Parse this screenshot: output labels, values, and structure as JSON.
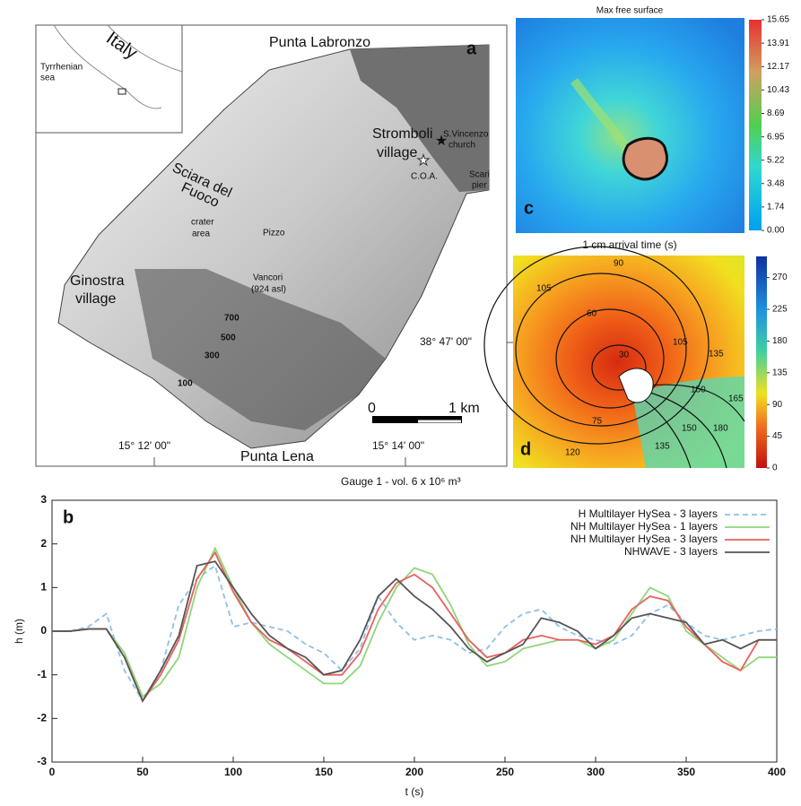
{
  "map": {
    "labels": [
      "Punta Labronzo",
      "a",
      "Italy",
      "Tyrrhenian",
      "sea",
      "Stromboli",
      "village",
      "S.Vincenzo",
      "church",
      "C.O.A.",
      "Scari",
      "pier",
      "Sciara del",
      "Fuoco",
      "crater",
      "area",
      "Pizzo",
      "Ginostra",
      "village",
      "Vancori",
      "(924 asl)",
      "700",
      "500",
      "300",
      "100",
      "0",
      "1 km",
      "38° 47' 00\"",
      "15° 12' 00\"",
      "15° 14' 00\"",
      "Punta Lena"
    ]
  },
  "panel_c": {
    "title": "Max free surface",
    "label": "c",
    "colorbar": {
      "lim": [
        0,
        15.65
      ],
      "ticks": [
        {
          "value": 0,
          "label": "0.00"
        },
        1.74,
        3.48,
        5.22,
        6.95,
        8.69,
        10.43,
        12.17,
        13.91,
        15.65
      ]
    }
  },
  "panel_d": {
    "title": "1 cm arrival time (s)",
    "label": "d",
    "colorbar": {
      "lim": [
        0,
        300
      ],
      "ticks": [
        0,
        45,
        90,
        135,
        180,
        225,
        270
      ]
    },
    "contour_labels": [
      105,
      90,
      60,
      30,
      75,
      105,
      135,
      150,
      120,
      135,
      150,
      165,
      180
    ]
  },
  "chart_data": {
    "type": "line",
    "label": "b",
    "title": "Gauge 1 - vol. 6 x 10⁶ m³",
    "x_label": "t (s)",
    "y_label": "h (m)",
    "x": [
      0,
      10,
      20,
      30,
      40,
      50,
      60,
      70,
      80,
      90,
      100,
      110,
      120,
      130,
      140,
      150,
      160,
      170,
      180,
      190,
      200,
      210,
      220,
      230,
      240,
      250,
      260,
      270,
      280,
      290,
      300,
      310,
      320,
      330,
      340,
      350,
      360,
      370,
      380,
      390,
      400
    ],
    "xlim": [
      0,
      400
    ],
    "xticks": [
      0,
      50,
      100,
      150,
      200,
      250,
      300,
      350,
      400
    ],
    "ylim": [
      -3,
      3
    ],
    "yticks": [
      -3,
      -2,
      -1,
      0,
      1,
      2,
      3
    ],
    "legend": "upper right",
    "series": [
      {
        "name": "H Multilayer HySea - 3 layers",
        "color": "#8fbfe6",
        "dashed": true,
        "values": [
          0,
          0,
          0.1,
          0.4,
          -0.9,
          -1.6,
          -0.9,
          0.6,
          1.2,
          1.5,
          0.1,
          0.2,
          0.1,
          0,
          -0.3,
          -0.5,
          -0.9,
          -0.4,
          0.8,
          0.2,
          -0.2,
          -0.1,
          -0.2,
          -0.5,
          -0.4,
          0.1,
          0.4,
          0.5,
          0.1,
          -0.1,
          -0.2,
          -0.3,
          -0.1,
          0.4,
          0.6,
          0.2,
          -0.1,
          -0.2,
          -0.1,
          0,
          0.05
        ]
      },
      {
        "name": "NH Multilayer HySea - 1 layers",
        "color": "#8fd67a",
        "values": [
          0,
          0,
          0.05,
          0.05,
          -0.5,
          -1.5,
          -1.2,
          -0.6,
          1.0,
          1.9,
          1.0,
          0.2,
          -0.3,
          -0.6,
          -0.9,
          -1.2,
          -1.2,
          -0.8,
          0.2,
          1.0,
          1.45,
          1.3,
          0.6,
          -0.3,
          -0.8,
          -0.7,
          -0.4,
          -0.3,
          -0.2,
          -0.2,
          -0.4,
          -0.2,
          0.4,
          1.0,
          0.8,
          0,
          -0.3,
          -0.6,
          -0.9,
          -0.6,
          -0.6
        ]
      },
      {
        "name": "NH Multilayer HySea - 3 layers",
        "color": "#e8605c",
        "values": [
          0,
          0,
          0.05,
          0.05,
          -0.6,
          -1.6,
          -1.0,
          -0.2,
          1.2,
          1.8,
          0.9,
          0.2,
          -0.2,
          -0.4,
          -0.7,
          -1.0,
          -1.0,
          -0.5,
          0.5,
          1.1,
          1.3,
          1.0,
          0.4,
          -0.2,
          -0.6,
          -0.5,
          -0.2,
          -0.1,
          -0.2,
          -0.2,
          -0.3,
          -0.1,
          0.5,
          0.8,
          0.7,
          0.1,
          -0.3,
          -0.7,
          -0.9,
          -0.2,
          -0.2
        ]
      },
      {
        "name": "NHWAVE - 3 layers",
        "color": "#555555",
        "values": [
          0,
          0,
          0.05,
          0.05,
          -0.6,
          -1.6,
          -0.9,
          -0.1,
          1.5,
          1.6,
          1.0,
          0.4,
          -0.1,
          -0.4,
          -0.6,
          -1.0,
          -0.9,
          -0.2,
          0.8,
          1.2,
          0.8,
          0.5,
          0.1,
          -0.4,
          -0.7,
          -0.5,
          -0.3,
          0.3,
          0.2,
          0,
          -0.4,
          -0.1,
          0.3,
          0.4,
          0.3,
          0.2,
          -0.3,
          -0.2,
          -0.4,
          -0.2,
          -0.2
        ]
      }
    ]
  }
}
